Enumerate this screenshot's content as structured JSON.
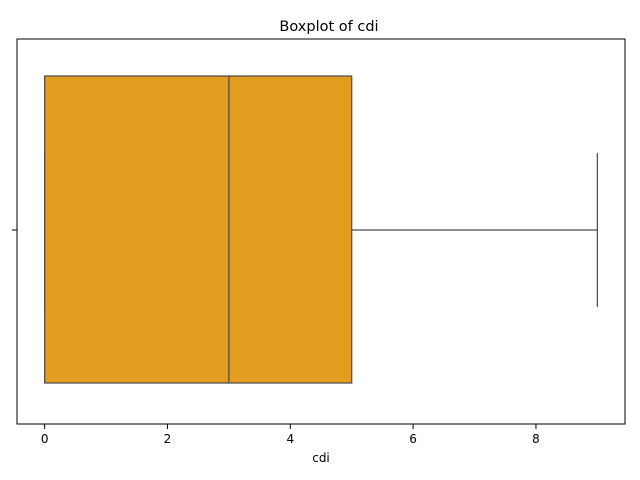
{
  "chart_data": {
    "type": "box",
    "title": "Boxplot of cdi",
    "xlabel": "cdi",
    "ylabel": "",
    "orientation": "horizontal",
    "xlim": [
      -0.45,
      9.45
    ],
    "xticks": [
      0,
      2,
      4,
      6,
      8
    ],
    "xtick_labels": [
      "0",
      "2",
      "4",
      "6",
      "8"
    ],
    "grid": false,
    "box": {
      "whisker_low": 0,
      "q1": 0,
      "median": 3,
      "q3": 5,
      "whisker_high": 9,
      "fill_color": "#e39d1f",
      "line_color": "#4d4d4d"
    }
  }
}
